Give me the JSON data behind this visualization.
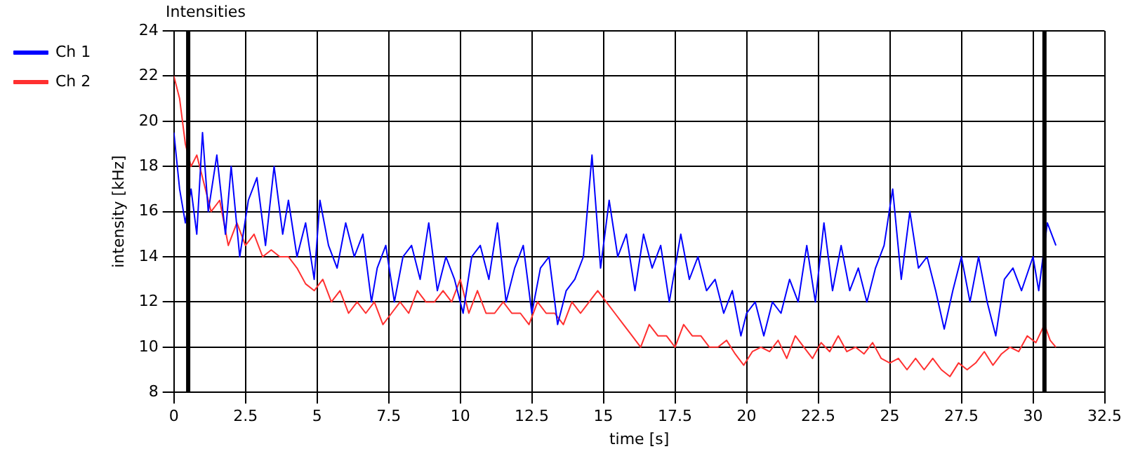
{
  "chart_data": {
    "type": "line",
    "title": "Intensities",
    "xlabel": "time [s]",
    "ylabel": "intensity [kHz]",
    "xlim": [
      0,
      32.5
    ],
    "xticks": [
      0,
      2.5,
      5,
      7.5,
      10,
      12.5,
      15,
      17.5,
      20,
      22.5,
      25,
      27.5,
      30,
      32.5
    ],
    "ylim": [
      8,
      24
    ],
    "yticks": [
      8,
      10,
      12,
      14,
      16,
      18,
      20,
      22,
      24
    ],
    "grid": true,
    "legend": "top left",
    "marker": "none",
    "line_style": "solid",
    "ref_lines": [
      {
        "axis": "x",
        "value": 0.5,
        "color": "#000000"
      },
      {
        "axis": "x",
        "value": 30.4,
        "color": "#000000"
      }
    ],
    "series": [
      {
        "name": "Ch 1",
        "color": "#0000ff",
        "x": [
          0,
          0.2,
          0.4,
          0.6,
          0.8,
          1,
          1.2,
          1.5,
          1.8,
          2,
          2.3,
          2.6,
          2.9,
          3.2,
          3.5,
          3.8,
          4,
          4.3,
          4.6,
          4.9,
          5.1,
          5.4,
          5.7,
          6,
          6.3,
          6.6,
          6.9,
          7.1,
          7.4,
          7.7,
          8,
          8.3,
          8.6,
          8.9,
          9.2,
          9.5,
          9.8,
          10.1,
          10.4,
          10.7,
          11,
          11.3,
          11.6,
          11.9,
          12.2,
          12.5,
          12.8,
          13.1,
          13.4,
          13.7,
          14,
          14.3,
          14.6,
          14.9,
          15.2,
          15.5,
          15.8,
          16.1,
          16.4,
          16.7,
          17,
          17.3,
          17.7,
          18,
          18.3,
          18.6,
          18.9,
          19.2,
          19.5,
          19.8,
          20,
          20.3,
          20.6,
          20.9,
          21.2,
          21.5,
          21.8,
          22.1,
          22.4,
          22.7,
          23,
          23.3,
          23.6,
          23.9,
          24.2,
          24.5,
          24.8,
          25.1,
          25.4,
          25.7,
          26,
          26.3,
          26.6,
          26.9,
          27.2,
          27.5,
          27.8,
          28.1,
          28.4,
          28.7,
          29,
          29.3,
          29.6,
          30,
          30.2,
          30.5,
          30.8
        ],
        "values": [
          19.5,
          17,
          15.5,
          17,
          15,
          19.5,
          16,
          18.5,
          15,
          18,
          14,
          16.5,
          17.5,
          14.5,
          18,
          15,
          16.5,
          14,
          15.5,
          13,
          16.5,
          14.5,
          13.5,
          15.5,
          14,
          15,
          12,
          13.5,
          14.5,
          12,
          14,
          14.5,
          13,
          15.5,
          12.5,
          14,
          13,
          11.5,
          14,
          14.5,
          13,
          15.5,
          12,
          13.5,
          14.5,
          11.5,
          13.5,
          14,
          11,
          12.5,
          13,
          14,
          18.5,
          13.5,
          16.5,
          14,
          15,
          12.5,
          15,
          13.5,
          14.5,
          12,
          15,
          13,
          14,
          12.5,
          13,
          11.5,
          12.5,
          10.5,
          11.5,
          12,
          10.5,
          12,
          11.5,
          13,
          12,
          14.5,
          12,
          15.5,
          12.5,
          14.5,
          12.5,
          13.5,
          12,
          13.5,
          14.5,
          17,
          13,
          16,
          13.5,
          14,
          12.5,
          10.8,
          12.5,
          14,
          12,
          14,
          12,
          10.5,
          13,
          13.5,
          12.5,
          14,
          12.5,
          15.5,
          14.5
        ]
      },
      {
        "name": "Ch 2",
        "color": "#ff3030",
        "x": [
          0,
          0.2,
          0.4,
          0.6,
          0.8,
          1,
          1.3,
          1.6,
          1.9,
          2.2,
          2.5,
          2.8,
          3.1,
          3.4,
          3.7,
          4,
          4.3,
          4.6,
          4.9,
          5.2,
          5.5,
          5.8,
          6.1,
          6.4,
          6.7,
          7,
          7.3,
          7.6,
          7.9,
          8.2,
          8.5,
          8.8,
          9.1,
          9.4,
          9.7,
          10,
          10.3,
          10.6,
          10.9,
          11.2,
          11.5,
          11.8,
          12.1,
          12.4,
          12.7,
          13,
          13.3,
          13.6,
          13.9,
          14.2,
          14.5,
          14.8,
          15.1,
          15.4,
          15.7,
          16,
          16.3,
          16.6,
          16.9,
          17.2,
          17.5,
          17.8,
          18.1,
          18.4,
          18.7,
          19,
          19.3,
          19.6,
          19.9,
          20.2,
          20.5,
          20.8,
          21.1,
          21.4,
          21.7,
          22,
          22.3,
          22.6,
          22.9,
          23.2,
          23.5,
          23.8,
          24.1,
          24.4,
          24.7,
          25,
          25.3,
          25.6,
          25.9,
          26.2,
          26.5,
          26.8,
          27.1,
          27.4,
          27.7,
          28,
          28.3,
          28.6,
          28.9,
          29.2,
          29.5,
          29.8,
          30.1,
          30.4,
          30.6,
          30.8
        ],
        "values": [
          22,
          21,
          19,
          18,
          18.5,
          17.5,
          16,
          16.5,
          14.5,
          15.5,
          14.5,
          15,
          14,
          14.3,
          14,
          14,
          13.5,
          12.8,
          12.5,
          13,
          12,
          12.5,
          11.5,
          12,
          11.5,
          12,
          11,
          11.5,
          12,
          11.5,
          12.5,
          12,
          12,
          12.5,
          12,
          13,
          11.5,
          12.5,
          11.5,
          11.5,
          12,
          11.5,
          11.5,
          11,
          12,
          11.5,
          11.5,
          11,
          12,
          11.5,
          12,
          12.5,
          12,
          11.5,
          11,
          10.5,
          10,
          11,
          10.5,
          10.5,
          10,
          11,
          10.5,
          10.5,
          10,
          10,
          10.3,
          9.7,
          9.2,
          9.8,
          10,
          9.8,
          10.3,
          9.5,
          10.5,
          10,
          9.5,
          10.2,
          9.8,
          10.5,
          9.8,
          10,
          9.7,
          10.2,
          9.5,
          9.3,
          9.5,
          9,
          9.5,
          9,
          9.5,
          9,
          8.7,
          9.3,
          9,
          9.3,
          9.8,
          9.2,
          9.7,
          10,
          9.8,
          10.5,
          10.2,
          11,
          10.3,
          10
        ]
      }
    ]
  }
}
